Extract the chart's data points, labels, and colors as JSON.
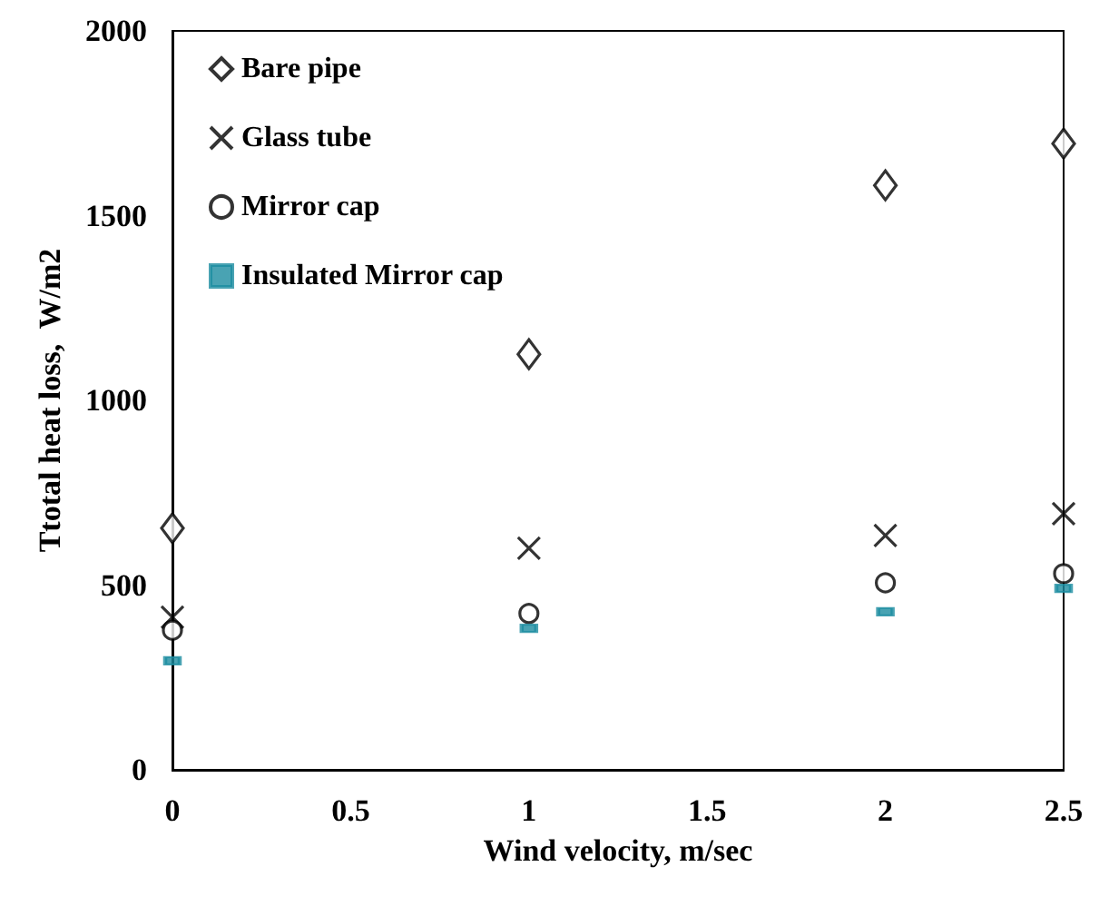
{
  "chart_data": {
    "type": "scatter",
    "xlabel": "Wind velocity, m/sec",
    "ylabel": "Ttotal heat loss,  W/m2",
    "x": [
      0,
      1,
      2,
      2.5
    ],
    "xlim": [
      0,
      2.5
    ],
    "xticks": [
      0,
      0.5,
      1,
      1.5,
      2,
      2.5
    ],
    "ylim": [
      0,
      2000
    ],
    "yticks": [
      0,
      500,
      1000,
      1500,
      2000
    ],
    "grid": false,
    "legend": "top left",
    "series": [
      {
        "name": "Bare pipe",
        "color": "#000000",
        "marker": "diamond",
        "values": [
          654,
          1125,
          1582,
          1695
        ]
      },
      {
        "name": "Glass tube",
        "color": "#000000",
        "marker": "cross",
        "values": [
          413,
          600,
          634,
          693
        ]
      },
      {
        "name": "Mirror cap",
        "color": "#000000",
        "marker": "circle",
        "values": [
          378,
          423,
          506,
          531
        ]
      },
      {
        "name": "Insulated Mirror cap",
        "color": "#1b8ca0",
        "marker": "square",
        "values": [
          295,
          383,
          428,
          491
        ]
      }
    ]
  }
}
